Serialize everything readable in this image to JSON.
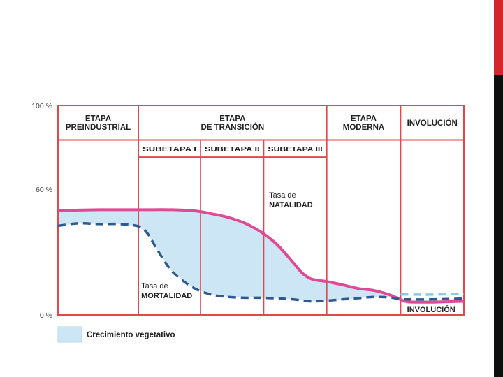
{
  "chart_data": {
    "type": "line",
    "y_tick_labels": [
      "100 %",
      "60 %",
      "0 %"
    ],
    "y_ticks": [
      100,
      60,
      0
    ],
    "ylim": [
      0,
      100
    ],
    "xlim": [
      0,
      100
    ],
    "stages": [
      {
        "lines": [
          "ETAPA",
          "PREINDUSTRIAL"
        ],
        "start": 0,
        "end": 19.8
      },
      {
        "lines": [
          "ETAPA",
          "DE TRANSICIÓN"
        ],
        "start": 19.8,
        "end": 66.2
      },
      {
        "lines": [
          "ETAPA",
          "MODERNA"
        ],
        "start": 66.2,
        "end": 84.4
      },
      {
        "lines": [
          "INVOLUCIÓN"
        ],
        "start": 84.4,
        "end": 100
      }
    ],
    "substages": [
      {
        "label": "SUBETAPA I",
        "start": 19.8,
        "end": 35.1
      },
      {
        "label": "SUBETAPA II",
        "start": 35.1,
        "end": 50.7
      },
      {
        "label": "SUBETAPA III",
        "start": 50.7,
        "end": 66.2
      }
    ],
    "series": [
      {
        "name": "Tasa de NATALIDAD",
        "style": "solid",
        "color": "#e04a94",
        "x": [
          0,
          10,
          20,
          28,
          34,
          38,
          42,
          46,
          50,
          54,
          58,
          60,
          62,
          64,
          66,
          70,
          74,
          78,
          82,
          84.4,
          86,
          88,
          92,
          96,
          100
        ],
        "y": [
          49.8,
          50.2,
          50.2,
          50.2,
          49.6,
          48.2,
          46.5,
          43.8,
          39.6,
          33.5,
          24.8,
          20.3,
          17.5,
          16.5,
          16.0,
          14.4,
          12.6,
          11.6,
          9.4,
          7.3,
          6.3,
          6.1,
          6.1,
          6.3,
          6.5
        ]
      },
      {
        "name": "Tasa de MORTALIDAD",
        "style": "dashed",
        "color": "#2f5a8f",
        "x": [
          0,
          5,
          10,
          15,
          19.8,
          22,
          24,
          26,
          28,
          31,
          34,
          38,
          42,
          46,
          50,
          54,
          58,
          62,
          66,
          70,
          74,
          78,
          82,
          84.4,
          88,
          92,
          96,
          100
        ],
        "y": [
          42.5,
          43.7,
          43.4,
          43.4,
          42.3,
          39.0,
          32.6,
          26.4,
          21.0,
          16.0,
          12.3,
          9.6,
          8.6,
          8.2,
          8.2,
          7.9,
          7.4,
          6.5,
          6.8,
          7.4,
          8.0,
          8.6,
          8.3,
          7.5,
          7.4,
          7.4,
          7.6,
          7.8
        ]
      }
    ],
    "annotations": [
      {
        "lines": [
          "Tasa de",
          "NATALIDAD"
        ],
        "x": 52,
        "y": 56
      },
      {
        "lines": [
          "Tasa de",
          "MORTALIDAD"
        ],
        "x": 20.5,
        "y": 12.6
      },
      {
        "lines": [
          "INVOLUCIÓN"
        ],
        "x": 86,
        "y": 1.4
      }
    ],
    "legend": {
      "label": "Crecimiento vegetativo",
      "color": "#cde6f6",
      "placement": "bottom-left"
    },
    "grid": false
  },
  "colors": {
    "grid_red": "#e2474b",
    "fill": "#cde6f6",
    "text": "#222222"
  }
}
